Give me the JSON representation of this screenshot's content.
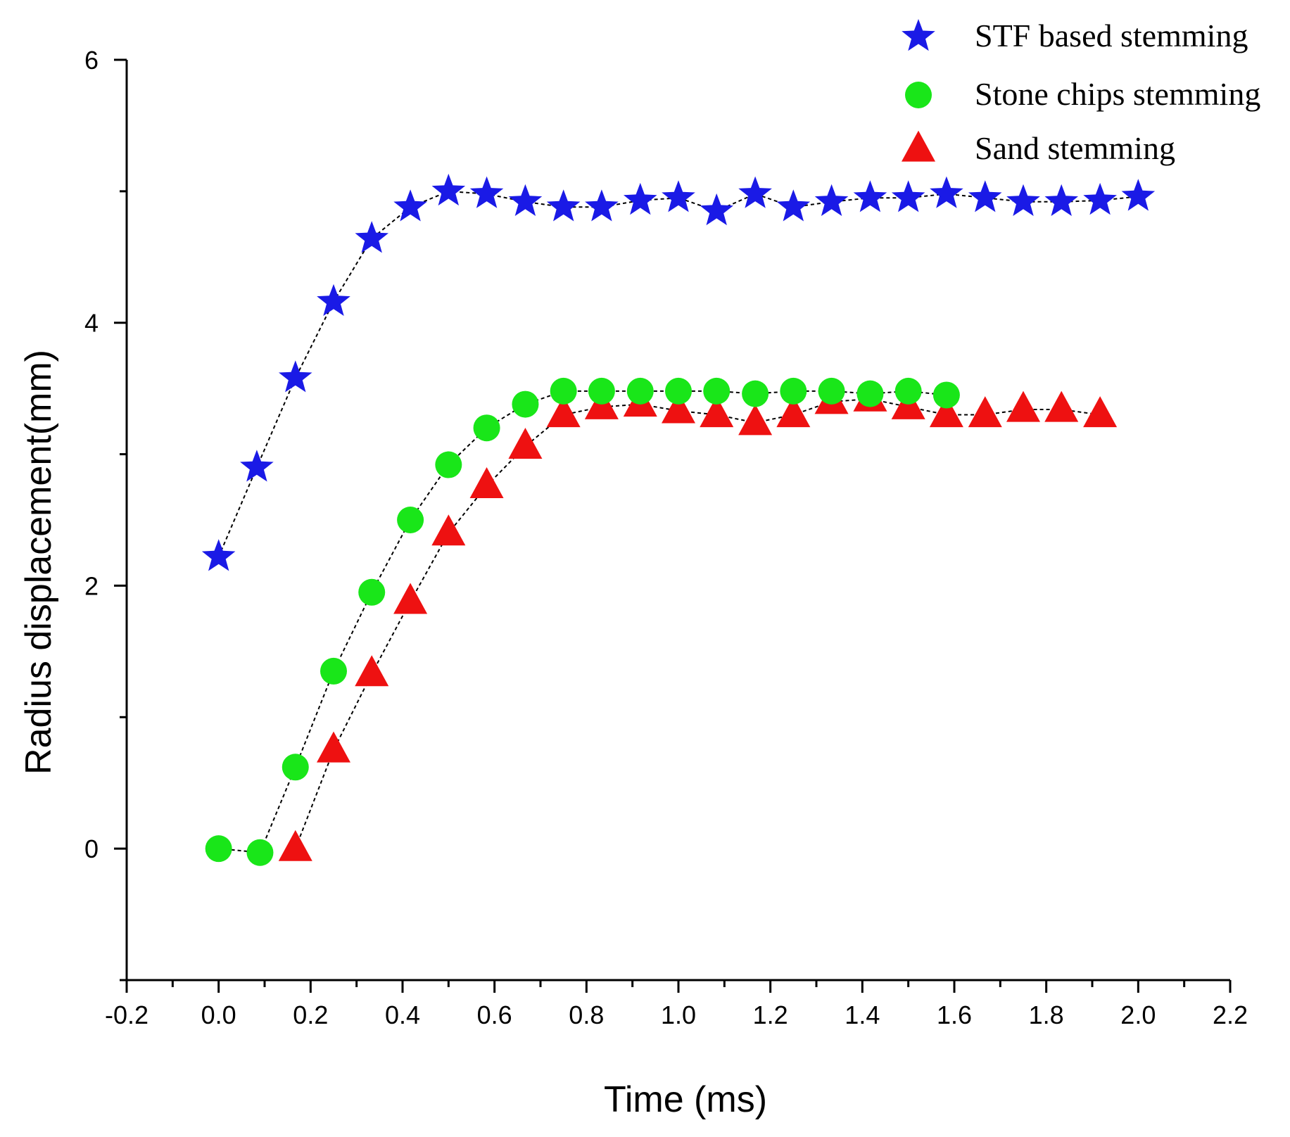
{
  "chart_data": {
    "type": "scatter",
    "title": "",
    "xlabel": "Time (ms)",
    "ylabel": "Radius displacement(mm)",
    "xlim": [
      -0.2,
      2.2
    ],
    "ylim": [
      -1,
      6
    ],
    "xticks": [
      -0.2,
      0.0,
      0.2,
      0.4,
      0.6,
      0.8,
      1.0,
      1.2,
      1.4,
      1.6,
      1.8,
      2.0,
      2.2
    ],
    "xtick_labels": [
      "-0.2",
      "0.0",
      "0.2",
      "0.4",
      "0.6",
      "0.8",
      "1.0",
      "1.2",
      "1.4",
      "1.6",
      "1.8",
      "2.0",
      "2.2"
    ],
    "yticks": [
      0,
      2,
      4,
      6
    ],
    "ytick_labels": [
      "0",
      "2",
      "4",
      "6"
    ],
    "legend_position": "top-right",
    "grid": false,
    "series": [
      {
        "name": "STF based stemming",
        "marker": "star",
        "color": "#1a1ae6",
        "x": [
          0.0,
          0.083,
          0.167,
          0.25,
          0.333,
          0.417,
          0.5,
          0.583,
          0.667,
          0.75,
          0.833,
          0.917,
          1.0,
          1.083,
          1.167,
          1.25,
          1.333,
          1.417,
          1.5,
          1.583,
          1.667,
          1.75,
          1.833,
          1.917,
          2.0
        ],
        "y": [
          2.22,
          2.9,
          3.58,
          4.16,
          4.64,
          4.88,
          5.0,
          4.98,
          4.92,
          4.88,
          4.88,
          4.93,
          4.95,
          4.85,
          4.98,
          4.88,
          4.92,
          4.95,
          4.95,
          4.98,
          4.95,
          4.92,
          4.92,
          4.93,
          4.96
        ]
      },
      {
        "name": "Stone chips stemming",
        "marker": "circle",
        "color": "#19e619",
        "x": [
          0.0,
          0.09,
          0.167,
          0.25,
          0.333,
          0.417,
          0.5,
          0.583,
          0.667,
          0.75,
          0.833,
          0.917,
          1.0,
          1.083,
          1.167,
          1.25,
          1.333,
          1.417,
          1.5,
          1.583
        ],
        "y": [
          0.0,
          -0.03,
          0.62,
          1.35,
          1.95,
          2.5,
          2.92,
          3.2,
          3.38,
          3.48,
          3.48,
          3.48,
          3.48,
          3.48,
          3.46,
          3.48,
          3.48,
          3.46,
          3.48,
          3.45
        ]
      },
      {
        "name": "Sand stemming",
        "marker": "triangle",
        "color": "#ee1111",
        "x": [
          0.167,
          0.25,
          0.333,
          0.417,
          0.5,
          0.583,
          0.667,
          0.75,
          0.833,
          0.917,
          1.0,
          1.083,
          1.167,
          1.25,
          1.333,
          1.417,
          1.5,
          1.583,
          1.667,
          1.75,
          1.833,
          1.917
        ],
        "y": [
          0.0,
          0.75,
          1.33,
          1.88,
          2.4,
          2.76,
          3.06,
          3.3,
          3.36,
          3.38,
          3.33,
          3.3,
          3.24,
          3.3,
          3.4,
          3.42,
          3.36,
          3.3,
          3.3,
          3.34,
          3.34,
          3.3
        ]
      }
    ]
  }
}
